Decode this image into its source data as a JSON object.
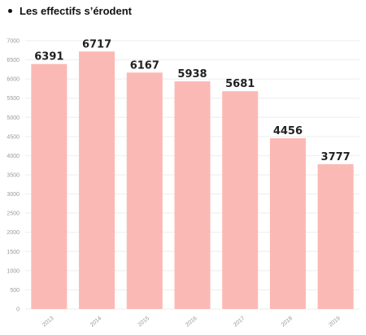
{
  "title": "Les effectifs s’érodent",
  "colors": {
    "bar": "#fbb9b5",
    "grid": "#eeeeee",
    "label": "#222222",
    "tick": "#999999"
  },
  "chart_data": {
    "type": "bar",
    "title": "Les effectifs s’érodent",
    "xlabel": "",
    "ylabel": "",
    "categories": [
      "2013",
      "2014",
      "2015",
      "2016",
      "2017",
      "2018",
      "2019"
    ],
    "values": [
      6391,
      6717,
      6167,
      5938,
      5681,
      4456,
      3777
    ],
    "data_labels": [
      "6391",
      "6717",
      "6167",
      "5938",
      "5681",
      "4456",
      "3777"
    ],
    "ylim": [
      0,
      7000
    ],
    "yticks": [
      0,
      500,
      1000,
      1500,
      2000,
      2500,
      3000,
      3500,
      4000,
      4500,
      5000,
      5500,
      6000,
      6500,
      7000
    ],
    "grid": true,
    "legend": "none"
  }
}
